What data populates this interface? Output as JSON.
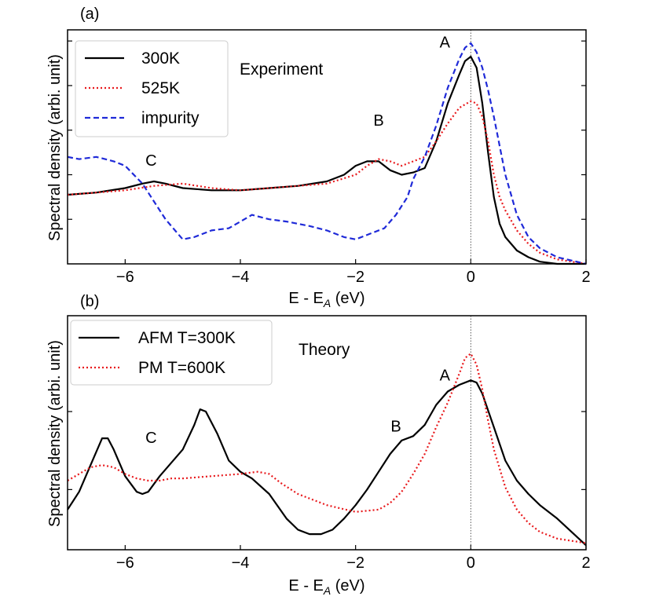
{
  "chart_data": [
    {
      "panel_label": "(a)",
      "type": "line",
      "title": "",
      "annotation_text": "Experiment",
      "xlabel": "E - E",
      "xlabel_sub": "A",
      "xlabel_unit": " (eV)",
      "ylabel": "Spectral density (arbi. unit)",
      "xlim": [
        -7,
        2
      ],
      "ylim": [
        0,
        1.05
      ],
      "xticks": [
        -6,
        -4,
        -2,
        0,
        2
      ],
      "xtick_labels": [
        "−6",
        "−4",
        "−2",
        "0",
        "2"
      ],
      "yticks": [
        0.2,
        0.4,
        0.6,
        0.8,
        1.0
      ],
      "legend_location": "top-left",
      "peak_labels": [
        {
          "text": "A",
          "x": -0.45,
          "y": 0.97
        },
        {
          "text": "B",
          "x": -1.6,
          "y": 0.62
        },
        {
          "text": "C",
          "x": -5.55,
          "y": 0.44
        }
      ],
      "series": [
        {
          "name": "300K",
          "color": "#000000",
          "style": "solid",
          "x": [
            -7,
            -6.5,
            -6,
            -5.7,
            -5.5,
            -5.3,
            -5,
            -4.5,
            -4,
            -3.5,
            -3,
            -2.5,
            -2.2,
            -2.0,
            -1.8,
            -1.6,
            -1.4,
            -1.2,
            -1.0,
            -0.8,
            -0.6,
            -0.4,
            -0.2,
            -0.1,
            0,
            0.1,
            0.2,
            0.3,
            0.4,
            0.5,
            0.6,
            0.8,
            1.0,
            1.2,
            1.5,
            2.0
          ],
          "y": [
            0.31,
            0.32,
            0.34,
            0.36,
            0.37,
            0.36,
            0.34,
            0.33,
            0.33,
            0.34,
            0.35,
            0.37,
            0.4,
            0.44,
            0.46,
            0.46,
            0.42,
            0.4,
            0.41,
            0.43,
            0.55,
            0.72,
            0.85,
            0.91,
            0.93,
            0.88,
            0.72,
            0.5,
            0.3,
            0.18,
            0.12,
            0.06,
            0.03,
            0.01,
            0.0,
            0.0
          ]
        },
        {
          "name": "525K",
          "color": "#e8191c",
          "style": "dotted",
          "x": [
            -7,
            -6.5,
            -6,
            -5.5,
            -5,
            -4.5,
            -4,
            -3.5,
            -3,
            -2.5,
            -2,
            -1.8,
            -1.6,
            -1.4,
            -1.2,
            -1.0,
            -0.8,
            -0.6,
            -0.4,
            -0.2,
            0,
            0.1,
            0.2,
            0.3,
            0.4,
            0.5,
            0.6,
            0.8,
            1.0,
            1.2,
            1.5,
            2.0
          ],
          "y": [
            0.31,
            0.32,
            0.33,
            0.35,
            0.36,
            0.34,
            0.33,
            0.34,
            0.35,
            0.36,
            0.4,
            0.44,
            0.47,
            0.46,
            0.44,
            0.46,
            0.48,
            0.55,
            0.63,
            0.7,
            0.73,
            0.72,
            0.66,
            0.55,
            0.4,
            0.3,
            0.24,
            0.15,
            0.09,
            0.05,
            0.02,
            0.0
          ]
        },
        {
          "name": "impurity",
          "color": "#1f2ad8",
          "style": "dashed",
          "x": [
            -7,
            -6.8,
            -6.5,
            -6.2,
            -6.0,
            -5.7,
            -5.5,
            -5.3,
            -5.1,
            -5.0,
            -4.8,
            -4.5,
            -4.2,
            -4.0,
            -3.8,
            -3.5,
            -3.2,
            -3.0,
            -2.8,
            -2.5,
            -2.2,
            -2.0,
            -1.8,
            -1.5,
            -1.3,
            -1.1,
            -1.0,
            -0.8,
            -0.6,
            -0.4,
            -0.2,
            -0.1,
            0,
            0.1,
            0.2,
            0.3,
            0.4,
            0.5,
            0.6,
            0.8,
            1.0,
            1.2,
            1.5,
            2.0
          ],
          "y": [
            0.48,
            0.47,
            0.48,
            0.46,
            0.44,
            0.36,
            0.28,
            0.2,
            0.14,
            0.11,
            0.12,
            0.15,
            0.16,
            0.19,
            0.22,
            0.2,
            0.19,
            0.18,
            0.17,
            0.15,
            0.12,
            0.11,
            0.13,
            0.16,
            0.22,
            0.3,
            0.38,
            0.48,
            0.62,
            0.79,
            0.92,
            0.97,
            0.99,
            0.95,
            0.88,
            0.78,
            0.66,
            0.53,
            0.4,
            0.22,
            0.12,
            0.07,
            0.03,
            0.0
          ]
        }
      ]
    },
    {
      "panel_label": "(b)",
      "type": "line",
      "title": "",
      "annotation_text": "Theory",
      "xlabel": "E - E",
      "xlabel_sub": "A",
      "xlabel_unit": " (eV)",
      "ylabel": "Spectral density (arbi. unit)",
      "xlim": [
        -7,
        2
      ],
      "ylim": [
        0,
        1.05
      ],
      "xticks": [
        -6,
        -4,
        -2,
        0,
        2
      ],
      "xtick_labels": [
        "−6",
        "−4",
        "−2",
        "0",
        "2"
      ],
      "yticks": [
        0.27,
        0.62
      ],
      "legend_location": "top-left",
      "peak_labels": [
        {
          "text": "A",
          "x": -0.45,
          "y": 0.76
        },
        {
          "text": "B",
          "x": -1.3,
          "y": 0.53
        },
        {
          "text": "C",
          "x": -5.55,
          "y": 0.48
        }
      ],
      "series": [
        {
          "name": "AFM T=300K",
          "color": "#000000",
          "style": "solid",
          "x": [
            -7,
            -6.8,
            -6.6,
            -6.4,
            -6.3,
            -6.2,
            -6.0,
            -5.8,
            -5.7,
            -5.6,
            -5.4,
            -5.2,
            -5.0,
            -4.8,
            -4.7,
            -4.6,
            -4.4,
            -4.2,
            -4.0,
            -3.8,
            -3.5,
            -3.2,
            -3.0,
            -2.8,
            -2.6,
            -2.4,
            -2.2,
            -2.0,
            -1.8,
            -1.6,
            -1.4,
            -1.2,
            -1.0,
            -0.8,
            -0.6,
            -0.4,
            -0.2,
            0,
            0.1,
            0.2,
            0.4,
            0.6,
            0.8,
            1.0,
            1.2,
            1.5,
            2.0
          ],
          "y": [
            0.18,
            0.26,
            0.38,
            0.5,
            0.5,
            0.45,
            0.33,
            0.26,
            0.25,
            0.26,
            0.33,
            0.39,
            0.45,
            0.56,
            0.63,
            0.62,
            0.52,
            0.4,
            0.35,
            0.32,
            0.25,
            0.14,
            0.09,
            0.07,
            0.07,
            0.09,
            0.14,
            0.2,
            0.27,
            0.35,
            0.43,
            0.49,
            0.51,
            0.56,
            0.65,
            0.71,
            0.74,
            0.76,
            0.75,
            0.7,
            0.55,
            0.4,
            0.31,
            0.25,
            0.2,
            0.14,
            0.02
          ]
        },
        {
          "name": "PM T=600K",
          "color": "#e8191c",
          "style": "dotted",
          "x": [
            -7,
            -6.8,
            -6.6,
            -6.4,
            -6.2,
            -6.0,
            -5.8,
            -5.6,
            -5.4,
            -5.2,
            -5.0,
            -4.5,
            -4.0,
            -3.7,
            -3.5,
            -3.3,
            -3.0,
            -2.5,
            -2.0,
            -1.6,
            -1.4,
            -1.2,
            -1.0,
            -0.8,
            -0.6,
            -0.4,
            -0.2,
            -0.1,
            0,
            0.1,
            0.2,
            0.3,
            0.4,
            0.6,
            0.8,
            1.0,
            1.2,
            1.5,
            2.0
          ],
          "y": [
            0.31,
            0.34,
            0.37,
            0.38,
            0.37,
            0.34,
            0.32,
            0.31,
            0.31,
            0.32,
            0.32,
            0.33,
            0.34,
            0.35,
            0.34,
            0.3,
            0.25,
            0.2,
            0.17,
            0.18,
            0.21,
            0.26,
            0.34,
            0.43,
            0.55,
            0.66,
            0.79,
            0.86,
            0.88,
            0.83,
            0.72,
            0.58,
            0.45,
            0.28,
            0.18,
            0.12,
            0.08,
            0.05,
            0.03
          ]
        }
      ]
    }
  ]
}
